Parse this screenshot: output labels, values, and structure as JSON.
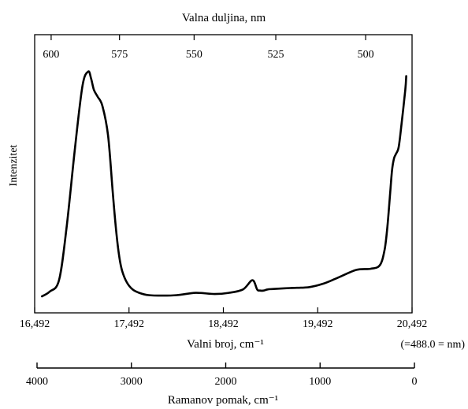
{
  "chart_data": {
    "type": "line",
    "title": "",
    "ylabel": "Intenzitet",
    "top_axis": {
      "label": "Valna duljina, nm",
      "ticks": [
        "600",
        "575",
        "550",
        "525",
        "500"
      ],
      "tick_values": [
        600,
        575,
        550,
        525,
        500
      ]
    },
    "x_axis": {
      "label": "Valni broj, cm⁻¹",
      "ticks": [
        "16,492",
        "17,492",
        "18,492",
        "19,492",
        "20,492"
      ],
      "tick_values": [
        16492,
        17492,
        18492,
        19492,
        20492
      ],
      "range": [
        16492,
        20492
      ],
      "end_note": "(=488.0 = nm)"
    },
    "raman_axis": {
      "label": "Ramanov pomak, cm⁻¹",
      "ticks": [
        "4000",
        "3000",
        "2000",
        "1000",
        "0"
      ],
      "tick_values": [
        4000,
        3000,
        2000,
        1000,
        0
      ]
    },
    "y_range": [
      0,
      100
    ],
    "series": [
      {
        "x": [
          16570,
          16650,
          16750,
          16830,
          16920,
          17000,
          17060,
          17090,
          17120,
          17160,
          17210,
          17270,
          17320,
          17360,
          17390,
          17420,
          17470,
          17530,
          17600,
          17700,
          17850,
          18000,
          18200,
          18400,
          18550,
          18700,
          18800,
          18850,
          18880,
          18920,
          18960,
          19020,
          19200,
          19400,
          19550,
          19700,
          19900,
          20050,
          20150,
          20200,
          20230,
          20260,
          20280,
          20300,
          20320,
          20350,
          20380,
          20420,
          20430
        ],
        "y": [
          0,
          2,
          7,
          30,
          65,
          92,
          98,
          95,
          90,
          87,
          83,
          70,
          45,
          27,
          17,
          11,
          6,
          3,
          1.5,
          0.5,
          0.3,
          0.5,
          1.5,
          1,
          1.5,
          3,
          7,
          3,
          2.5,
          2.5,
          3,
          3.2,
          3.6,
          4,
          5.5,
          8,
          11.5,
          12,
          13.5,
          20,
          30,
          45,
          55,
          60,
          62,
          65,
          75,
          90,
          96
        ]
      }
    ]
  }
}
